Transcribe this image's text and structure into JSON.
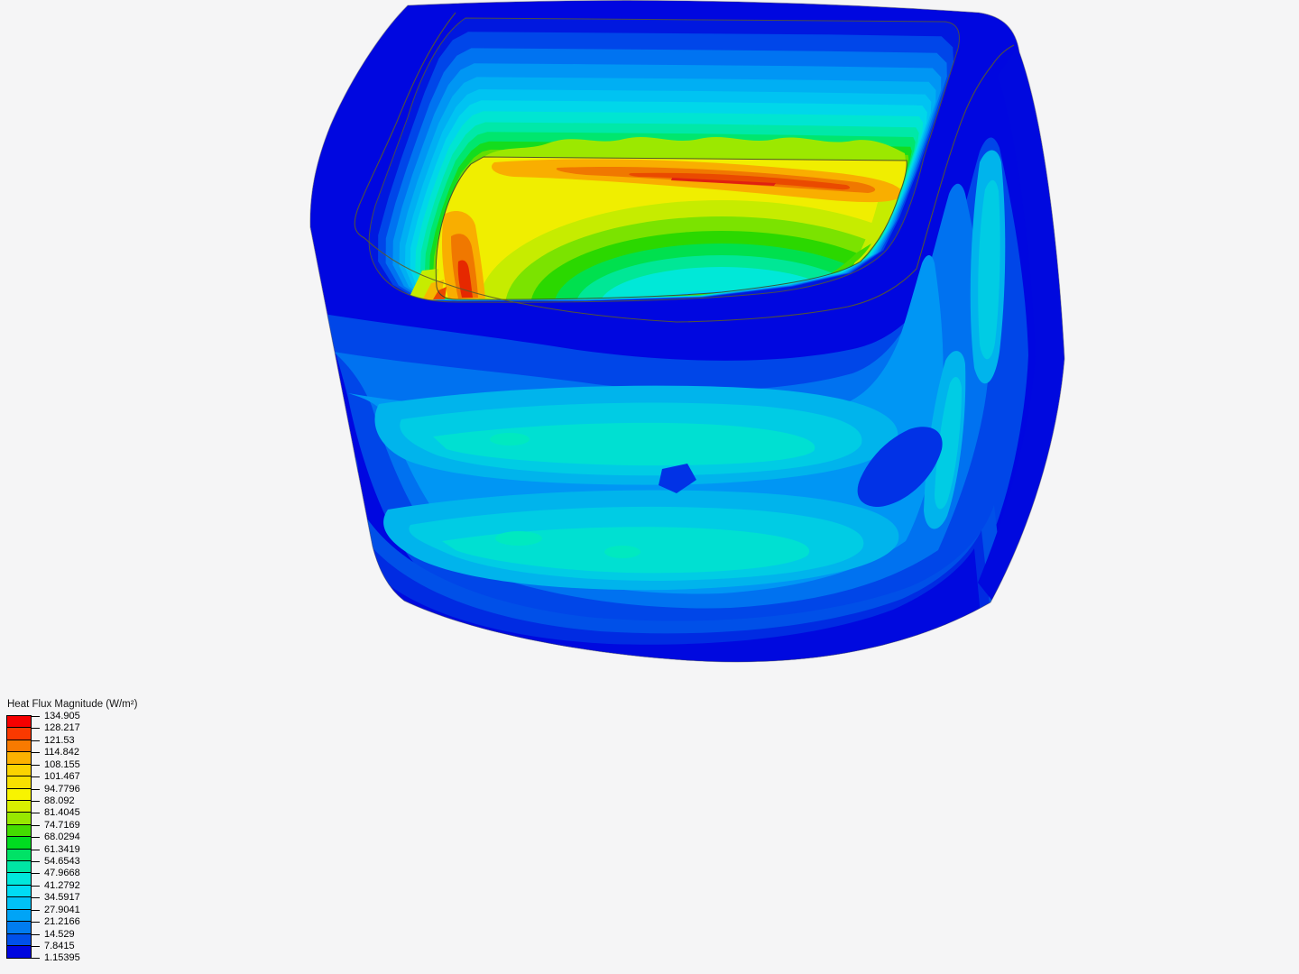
{
  "app": {
    "background": "#f5f5f6",
    "view_description": "3D contour result of a hollow rounded box, viewed from above-front"
  },
  "legend": {
    "title": "Heat Flux Magnitude (W/m²)",
    "ticks": [
      "134.905",
      "128.217",
      "121.53",
      "114.842",
      "108.155",
      "101.467",
      "94.7796",
      "88.092",
      "81.4045",
      "74.7169",
      "68.0294",
      "61.3419",
      "54.6543",
      "47.9668",
      "41.2792",
      "34.5917",
      "27.9041",
      "21.2166",
      "14.529",
      "7.8415",
      "1.15395"
    ],
    "band_colors": [
      "#F60000",
      "#FA3900",
      "#F87A00",
      "#FCB100",
      "#FBD300",
      "#F8E000",
      "#F8F400",
      "#D8F000",
      "#98E800",
      "#44DC00",
      "#00DC20",
      "#00E266",
      "#00E6A4",
      "#00E8DC",
      "#00DCF4",
      "#00C2F6",
      "#00A4F6",
      "#007CF0",
      "#0050EA",
      "#0006DF"
    ]
  },
  "model": {
    "cavity_base_color": "#0018DF",
    "cavity_band_colors": [
      "#0046E9",
      "#0073F1",
      "#0096F4",
      "#00AFF3",
      "#00C3F2",
      "#00D7EA",
      "#00E5D2",
      "#00E8A8",
      "#00E66E",
      "#14DC1E",
      "#64DE00"
    ]
  },
  "chart_data": {
    "type": "heatmap",
    "title": "Heat Flux Magnitude (W/m²)",
    "unit": "W/m²",
    "range": [
      1.15395,
      134.905
    ],
    "colorbar_values": [
      134.905,
      128.217,
      121.53,
      114.842,
      108.155,
      101.467,
      94.7796,
      88.092,
      81.4045,
      74.7169,
      68.0294,
      61.3419,
      54.6543,
      47.9668,
      41.2792,
      34.5917,
      27.9041,
      21.2166,
      14.529,
      7.8415,
      1.15395
    ],
    "colorbar_colors_top_to_bottom": [
      "#F60000",
      "#FA3900",
      "#F87A00",
      "#FCB100",
      "#FBD300",
      "#F8E000",
      "#F8F400",
      "#D8F000",
      "#98E800",
      "#44DC00",
      "#00DC20",
      "#00E266",
      "#00E6A4",
      "#00E8DC",
      "#00DCF4",
      "#00C2F6",
      "#00A4F6",
      "#007CF0",
      "#0050EA",
      "#0006DF"
    ],
    "legend_position": "bottom-left",
    "description": "Discrete rainbow contour bands on a hollow rounded rectangular solid. Exterior walls: low flux 1-55 W/m² (blues/cyans with concentric cyan rings). Cavity interior walls grade blue to green downward; cavity floor reaches 95-135 W/m² (yellow/orange/red streak along back edge and left side); cool cyan pocket ~41-48 W/m² at floor center front."
  }
}
